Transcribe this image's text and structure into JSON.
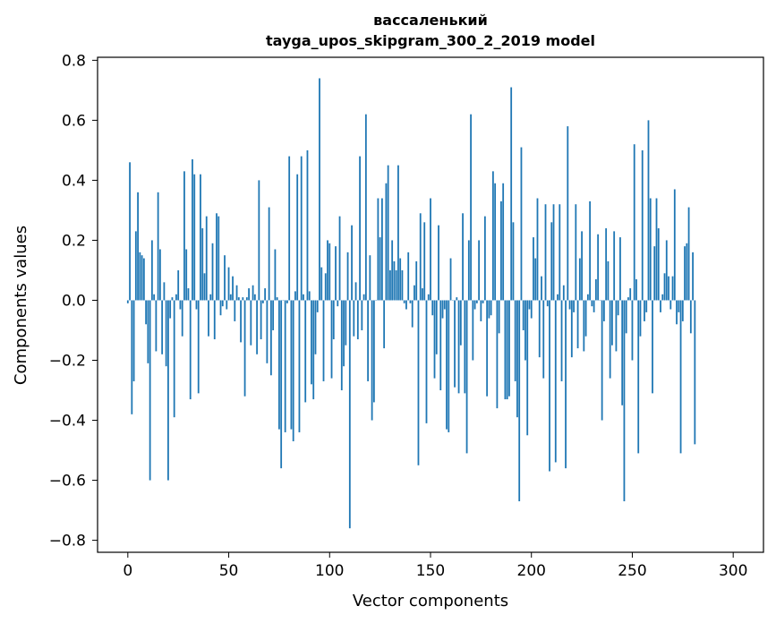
{
  "chart_data": {
    "type": "bar",
    "title": "вассаленький\ntayga_upos_skipgram_300_2_2019 model",
    "title_lines": [
      "вассаленький",
      "tayga_upos_skipgram_300_2_2019 model"
    ],
    "xlabel": "Vector components",
    "ylabel": "Components values",
    "xlim": [
      -15,
      315
    ],
    "ylim": [
      -0.84,
      0.81
    ],
    "xticks": [
      0,
      50,
      100,
      150,
      200,
      250,
      300
    ],
    "xtick_labels": [
      "0",
      "50",
      "100",
      "150",
      "200",
      "250",
      "300"
    ],
    "yticks": [
      -0.8,
      -0.6,
      -0.4,
      -0.2,
      0.0,
      0.2,
      0.4,
      0.6,
      0.8
    ],
    "ytick_labels": [
      "−0.8",
      "−0.6",
      "−0.4",
      "−0.2",
      "0.0",
      "0.2",
      "0.4",
      "0.6",
      "0.8"
    ],
    "bar_color": "#1f77b4",
    "grid": false,
    "series": [
      {
        "values": [
          -0.01,
          0.46,
          -0.38,
          -0.27,
          0.23,
          0.36,
          0.16,
          0.15,
          0.14,
          -0.08,
          -0.21,
          -0.6,
          0.2,
          0.02,
          -0.17,
          0.36,
          0.17,
          -0.18,
          0.06,
          -0.22,
          -0.6,
          -0.06,
          0.01,
          -0.39,
          0.02,
          0.1,
          -0.03,
          -0.12,
          0.43,
          0.17,
          0.04,
          -0.33,
          0.47,
          0.42,
          -0.03,
          -0.31,
          0.42,
          0.24,
          0.09,
          0.28,
          -0.12,
          0.02,
          0.19,
          -0.13,
          0.29,
          0.28,
          -0.05,
          -0.02,
          0.15,
          -0.03,
          0.11,
          0.02,
          0.08,
          -0.07,
          0.05,
          0.01,
          -0.14,
          0.01,
          -0.32,
          0.01,
          0.04,
          -0.15,
          0.05,
          0.02,
          -0.18,
          0.4,
          -0.13,
          -0.01,
          0.04,
          -0.21,
          0.31,
          -0.25,
          -0.1,
          0.17,
          0.01,
          -0.43,
          -0.56,
          0.0,
          -0.44,
          -0.01,
          0.48,
          -0.43,
          -0.47,
          0.03,
          0.42,
          -0.44,
          0.48,
          0.02,
          -0.34,
          0.5,
          0.03,
          -0.28,
          -0.33,
          -0.18,
          -0.04,
          0.74,
          0.11,
          -0.27,
          0.09,
          0.2,
          0.19,
          -0.26,
          -0.13,
          0.18,
          -0.02,
          0.28,
          -0.3,
          -0.22,
          -0.15,
          0.16,
          -0.76,
          0.25,
          -0.12,
          0.06,
          -0.13,
          0.48,
          -0.1,
          0.02,
          0.62,
          -0.27,
          0.15,
          -0.4,
          -0.34,
          0.0,
          0.34,
          0.21,
          0.34,
          -0.16,
          0.39,
          0.45,
          0.1,
          0.2,
          0.13,
          0.1,
          0.45,
          0.14,
          0.1,
          -0.01,
          -0.03,
          0.16,
          -0.01,
          -0.09,
          0.05,
          0.13,
          -0.55,
          0.29,
          0.04,
          0.26,
          -0.41,
          0.02,
          0.34,
          -0.05,
          -0.26,
          -0.18,
          0.25,
          -0.3,
          -0.06,
          -0.03,
          -0.43,
          -0.44,
          0.14,
          0.0,
          -0.29,
          0.01,
          -0.31,
          -0.15,
          0.29,
          -0.31,
          -0.51,
          0.2,
          0.62,
          -0.2,
          -0.03,
          -0.01,
          0.2,
          -0.07,
          -0.01,
          0.28,
          -0.32,
          -0.06,
          -0.05,
          0.43,
          0.39,
          -0.36,
          -0.11,
          0.33,
          0.39,
          -0.33,
          -0.33,
          -0.32,
          0.71,
          0.26,
          -0.27,
          -0.39,
          -0.67,
          0.51,
          -0.1,
          -0.2,
          -0.45,
          -0.03,
          -0.06,
          0.21,
          0.14,
          0.34,
          -0.19,
          0.08,
          -0.26,
          0.32,
          -0.02,
          -0.57,
          0.26,
          0.32,
          -0.54,
          0.02,
          0.32,
          -0.27,
          0.05,
          -0.56,
          0.58,
          -0.03,
          -0.19,
          -0.04,
          0.32,
          -0.16,
          0.14,
          0.23,
          -0.17,
          -0.12,
          0.02,
          0.33,
          -0.02,
          -0.04,
          0.07,
          0.22,
          0.0,
          -0.4,
          -0.07,
          0.24,
          0.13,
          -0.26,
          -0.15,
          0.23,
          -0.17,
          -0.05,
          0.21,
          -0.35,
          -0.67,
          -0.11,
          0.01,
          0.04,
          -0.2,
          0.52,
          0.07,
          -0.51,
          -0.12,
          0.5,
          -0.07,
          -0.04,
          0.6,
          0.34,
          -0.31,
          0.18,
          0.34,
          0.24,
          -0.04,
          0.02,
          0.09,
          0.2,
          0.08,
          -0.03,
          0.08,
          0.37,
          -0.08,
          -0.04,
          -0.51,
          -0.07,
          0.18,
          0.19,
          0.31,
          -0.11,
          0.16,
          -0.48
        ]
      }
    ]
  }
}
